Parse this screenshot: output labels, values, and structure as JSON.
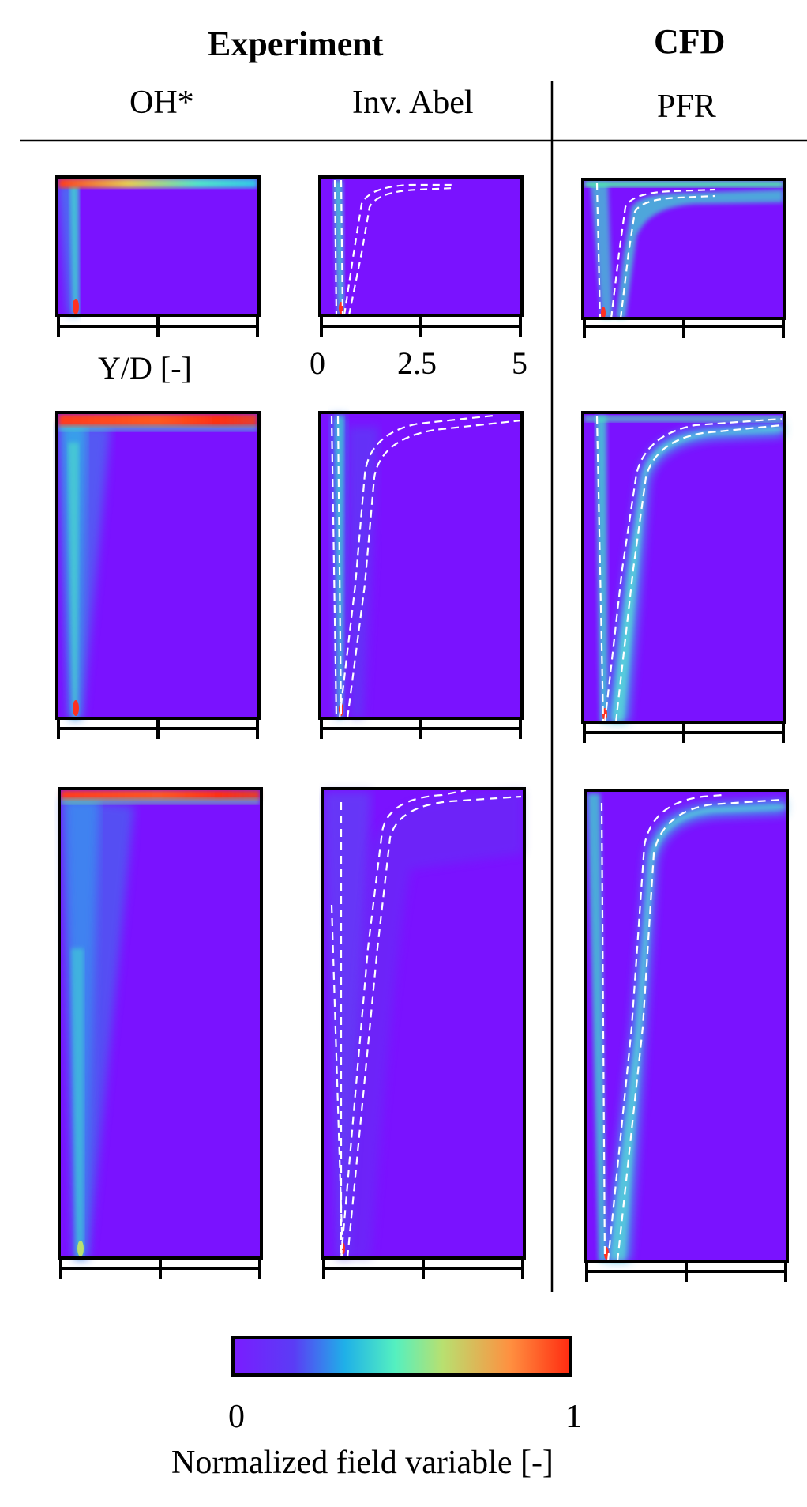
{
  "headers": {
    "experiment": "Experiment",
    "cfd": "CFD",
    "col_oh": "OH*",
    "col_abel": "Inv. Abel",
    "col_pfr": "PFR"
  },
  "axis": {
    "ylabel": "Y/D [-]",
    "ticks": [
      "0",
      "2.5",
      "5"
    ]
  },
  "colorbar": {
    "min_label": "0",
    "max_label": "1",
    "title": "Normalized field variable [-]",
    "stops": [
      "#7a1cff",
      "#5b3cf5",
      "#1fb0e8",
      "#54f0c0",
      "#b8e070",
      "#ff9040",
      "#ff2a10"
    ]
  },
  "colors": {
    "background": "#7a12ff",
    "contour": "#ffffff",
    "hot": "#ff3020"
  }
}
